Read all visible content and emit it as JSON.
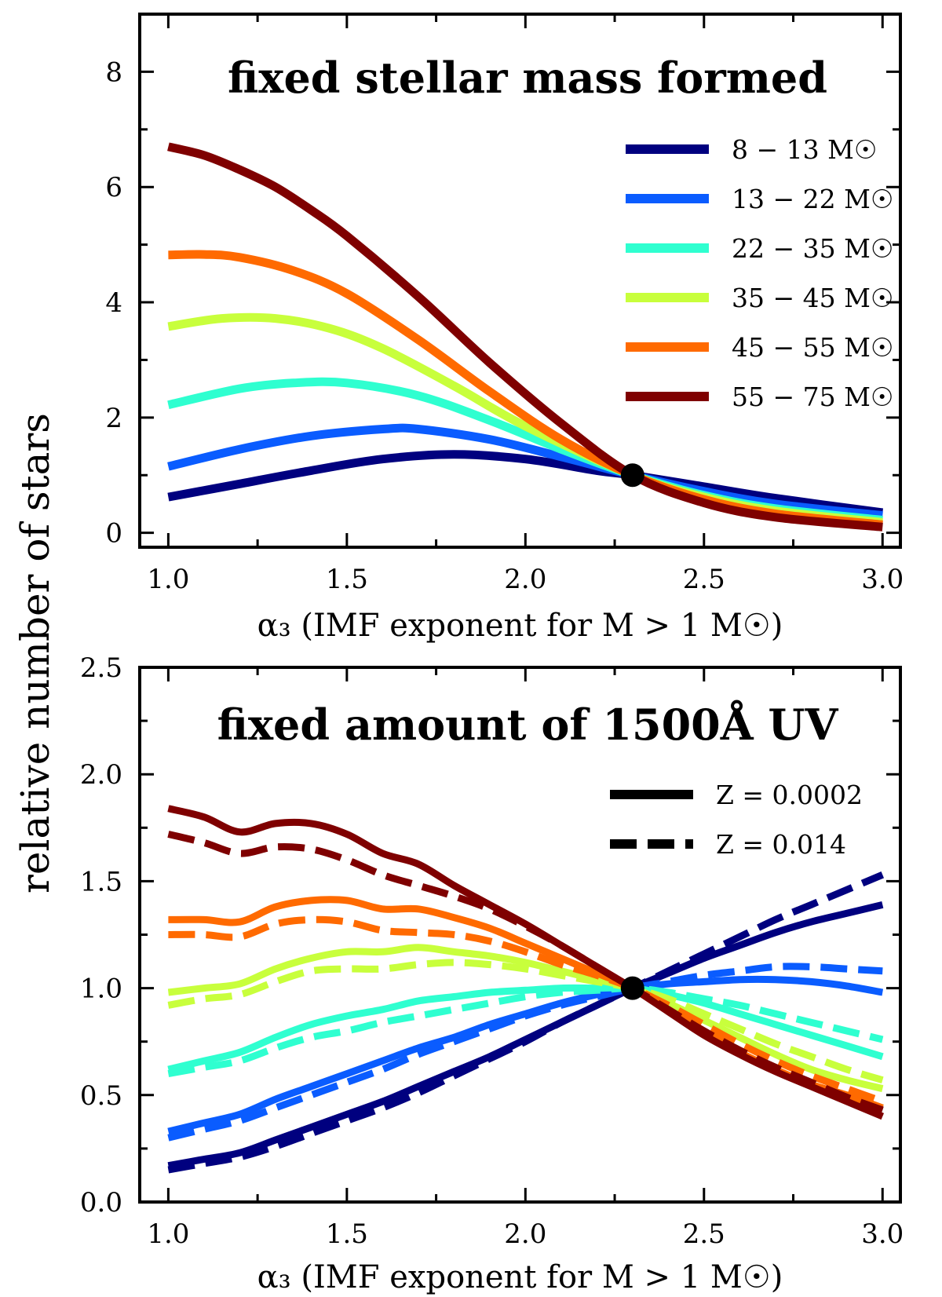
{
  "figure": {
    "ylabel": "relative number of stars",
    "pivot": {
      "x": 2.3,
      "y": 1.0
    }
  },
  "chart_data": [
    {
      "type": "line",
      "title": "fixed stellar mass formed",
      "xlabel": "α₃ (IMF exponent for M > 1 M☉)",
      "ylabel": "relative number of stars",
      "xlim": [
        0.92,
        3.05
      ],
      "ylim": [
        -0.25,
        9.0
      ],
      "xticks": [
        "1.0",
        "1.5",
        "2.0",
        "2.5",
        "3.0"
      ],
      "xtick_values": [
        1.0,
        1.5,
        2.0,
        2.5,
        3.0
      ],
      "yticks": [
        "0",
        "2",
        "4",
        "6",
        "8"
      ],
      "ytick_values": [
        0,
        2,
        4,
        6,
        8
      ],
      "grid": false,
      "legend": "top-right",
      "series": [
        {
          "name": "8 − 13 M☉",
          "color": "#00007f",
          "style": "solid",
          "x": [
            1.0,
            1.2,
            1.4,
            1.6,
            1.8,
            2.0,
            2.2,
            2.3,
            2.5,
            2.7,
            3.0
          ],
          "y": [
            0.62,
            0.85,
            1.08,
            1.28,
            1.36,
            1.28,
            1.08,
            1.0,
            0.8,
            0.6,
            0.35
          ]
        },
        {
          "name": "13 − 22 M☉",
          "color": "#0a5cff",
          "style": "solid",
          "x": [
            1.0,
            1.2,
            1.4,
            1.6,
            1.7,
            1.9,
            2.1,
            2.3,
            2.5,
            2.7,
            3.0
          ],
          "y": [
            1.15,
            1.45,
            1.68,
            1.8,
            1.8,
            1.62,
            1.32,
            1.0,
            0.72,
            0.5,
            0.3
          ]
        },
        {
          "name": "22 − 35 M☉",
          "color": "#2fffd0",
          "style": "solid",
          "x": [
            1.0,
            1.2,
            1.35,
            1.5,
            1.7,
            1.9,
            2.1,
            2.3,
            2.5,
            2.7,
            3.0
          ],
          "y": [
            2.22,
            2.5,
            2.6,
            2.6,
            2.38,
            1.95,
            1.45,
            1.0,
            0.65,
            0.42,
            0.22
          ]
        },
        {
          "name": "35 − 45 M☉",
          "color": "#c8ff3c",
          "style": "solid",
          "x": [
            1.0,
            1.15,
            1.3,
            1.45,
            1.6,
            1.8,
            2.0,
            2.3,
            2.5,
            2.7,
            3.0
          ],
          "y": [
            3.58,
            3.72,
            3.72,
            3.55,
            3.2,
            2.55,
            1.85,
            1.0,
            0.62,
            0.38,
            0.18
          ]
        },
        {
          "name": "45 − 55 M☉",
          "color": "#ff6a00",
          "style": "solid",
          "x": [
            1.0,
            1.1,
            1.2,
            1.35,
            1.5,
            1.7,
            1.9,
            2.1,
            2.3,
            2.5,
            2.7,
            3.0
          ],
          "y": [
            4.82,
            4.83,
            4.78,
            4.55,
            4.15,
            3.35,
            2.45,
            1.62,
            1.0,
            0.58,
            0.33,
            0.14
          ]
        },
        {
          "name": "55 − 75 M☉",
          "color": "#7f0000",
          "style": "solid",
          "x": [
            1.0,
            1.1,
            1.2,
            1.3,
            1.4,
            1.5,
            1.7,
            1.9,
            2.1,
            2.3,
            2.5,
            2.7,
            3.0
          ],
          "y": [
            6.7,
            6.55,
            6.3,
            6.0,
            5.6,
            5.15,
            4.1,
            2.95,
            1.9,
            1.0,
            0.52,
            0.27,
            0.1
          ]
        }
      ]
    },
    {
      "type": "line",
      "title": "fixed amount of 1500Å UV",
      "xlabel": "α₃ (IMF exponent for M > 1 M☉)",
      "ylabel": "relative number of stars",
      "xlim": [
        0.92,
        3.05
      ],
      "ylim": [
        0.0,
        2.5
      ],
      "xticks": [
        "1.0",
        "1.5",
        "2.0",
        "2.5",
        "3.0"
      ],
      "xtick_values": [
        1.0,
        1.5,
        2.0,
        2.5,
        3.0
      ],
      "yticks": [
        "0.0",
        "0.5",
        "1.0",
        "1.5",
        "2.0",
        "2.5"
      ],
      "ytick_values": [
        0.0,
        0.5,
        1.0,
        1.5,
        2.0,
        2.5
      ],
      "grid": false,
      "legend": "top-right",
      "legend_entries": [
        {
          "name": "Z = 0.0002",
          "style": "solid",
          "color": "#000000"
        },
        {
          "name": "Z = 0.014",
          "style": "dashed",
          "color": "#000000"
        }
      ],
      "series": [
        {
          "name": "8 − 13 M☉, Z = 0.0002",
          "color": "#00007f",
          "style": "solid",
          "x": [
            1.0,
            1.1,
            1.2,
            1.3,
            1.4,
            1.5,
            1.6,
            1.7,
            1.8,
            1.9,
            2.0,
            2.1,
            2.2,
            2.3,
            2.4,
            2.5,
            2.6,
            2.7,
            2.8,
            2.9,
            3.0
          ],
          "y": [
            0.17,
            0.2,
            0.23,
            0.29,
            0.35,
            0.41,
            0.47,
            0.54,
            0.61,
            0.68,
            0.76,
            0.84,
            0.92,
            1.0,
            1.07,
            1.14,
            1.2,
            1.26,
            1.31,
            1.35,
            1.39
          ]
        },
        {
          "name": "8 − 13 M☉, Z = 0.014",
          "color": "#00007f",
          "style": "dashed",
          "x": [
            1.0,
            1.1,
            1.2,
            1.3,
            1.4,
            1.5,
            1.6,
            1.7,
            1.8,
            1.9,
            2.0,
            2.1,
            2.2,
            2.3,
            2.4,
            2.5,
            2.6,
            2.7,
            2.8,
            2.9,
            3.0
          ],
          "y": [
            0.15,
            0.18,
            0.21,
            0.26,
            0.32,
            0.38,
            0.44,
            0.51,
            0.59,
            0.67,
            0.75,
            0.84,
            0.92,
            1.0,
            1.08,
            1.16,
            1.24,
            1.32,
            1.39,
            1.46,
            1.53
          ]
        },
        {
          "name": "13 − 22 M☉, Z = 0.0002",
          "color": "#0a5cff",
          "style": "solid",
          "x": [
            1.0,
            1.1,
            1.2,
            1.3,
            1.4,
            1.5,
            1.6,
            1.7,
            1.8,
            1.9,
            2.0,
            2.1,
            2.2,
            2.3,
            2.4,
            2.5,
            2.6,
            2.7,
            2.8,
            2.9,
            3.0
          ],
          "y": [
            0.33,
            0.37,
            0.41,
            0.48,
            0.54,
            0.6,
            0.66,
            0.72,
            0.77,
            0.83,
            0.88,
            0.93,
            0.97,
            1.0,
            1.02,
            1.03,
            1.04,
            1.04,
            1.03,
            1.01,
            0.98
          ]
        },
        {
          "name": "13 − 22 M☉, Z = 0.014",
          "color": "#0a5cff",
          "style": "dashed",
          "x": [
            1.0,
            1.1,
            1.2,
            1.3,
            1.4,
            1.5,
            1.6,
            1.7,
            1.8,
            1.9,
            2.0,
            2.1,
            2.2,
            2.3,
            2.4,
            2.5,
            2.6,
            2.7,
            2.8,
            2.9,
            3.0
          ],
          "y": [
            0.3,
            0.34,
            0.38,
            0.44,
            0.5,
            0.56,
            0.62,
            0.69,
            0.75,
            0.81,
            0.87,
            0.92,
            0.96,
            1.0,
            1.03,
            1.06,
            1.08,
            1.1,
            1.1,
            1.09,
            1.08
          ]
        },
        {
          "name": "22 − 35 M☉, Z = 0.0002",
          "color": "#2fffd0",
          "style": "solid",
          "x": [
            1.0,
            1.1,
            1.2,
            1.3,
            1.4,
            1.5,
            1.6,
            1.7,
            1.8,
            1.9,
            2.0,
            2.1,
            2.2,
            2.3,
            2.4,
            2.5,
            2.6,
            2.7,
            2.8,
            2.9,
            3.0
          ],
          "y": [
            0.62,
            0.66,
            0.7,
            0.77,
            0.83,
            0.87,
            0.9,
            0.94,
            0.96,
            0.98,
            0.99,
            1.0,
            1.0,
            1.0,
            0.97,
            0.93,
            0.88,
            0.83,
            0.78,
            0.73,
            0.68
          ]
        },
        {
          "name": "22 − 35 M☉, Z = 0.014",
          "color": "#2fffd0",
          "style": "dashed",
          "x": [
            1.0,
            1.1,
            1.2,
            1.3,
            1.4,
            1.5,
            1.6,
            1.7,
            1.8,
            1.9,
            2.0,
            2.1,
            2.2,
            2.3,
            2.4,
            2.5,
            2.6,
            2.7,
            2.8,
            2.9,
            3.0
          ],
          "y": [
            0.6,
            0.63,
            0.66,
            0.72,
            0.77,
            0.8,
            0.84,
            0.87,
            0.9,
            0.93,
            0.96,
            0.98,
            0.99,
            1.0,
            0.98,
            0.95,
            0.92,
            0.88,
            0.84,
            0.8,
            0.76
          ]
        },
        {
          "name": "35 − 45 M☉, Z = 0.0002",
          "color": "#c8ff3c",
          "style": "solid",
          "x": [
            1.0,
            1.1,
            1.2,
            1.3,
            1.4,
            1.5,
            1.6,
            1.7,
            1.8,
            1.9,
            2.0,
            2.1,
            2.2,
            2.3,
            2.4,
            2.5,
            2.6,
            2.7,
            2.8,
            2.9,
            3.0
          ],
          "y": [
            0.98,
            1.0,
            1.02,
            1.09,
            1.14,
            1.17,
            1.17,
            1.19,
            1.17,
            1.15,
            1.12,
            1.08,
            1.04,
            1.0,
            0.93,
            0.85,
            0.77,
            0.69,
            0.62,
            0.57,
            0.53
          ]
        },
        {
          "name": "35 − 45 M☉, Z = 0.014",
          "color": "#c8ff3c",
          "style": "dashed",
          "x": [
            1.0,
            1.1,
            1.2,
            1.3,
            1.4,
            1.5,
            1.6,
            1.7,
            1.8,
            1.9,
            2.0,
            2.1,
            2.2,
            2.3,
            2.4,
            2.5,
            2.6,
            2.7,
            2.8,
            2.9,
            3.0
          ],
          "y": [
            0.92,
            0.95,
            0.97,
            1.03,
            1.08,
            1.09,
            1.09,
            1.11,
            1.12,
            1.11,
            1.09,
            1.06,
            1.03,
            1.0,
            0.95,
            0.88,
            0.81,
            0.74,
            0.68,
            0.62,
            0.57
          ]
        },
        {
          "name": "45 − 55 M☉, Z = 0.0002",
          "color": "#ff6a00",
          "style": "solid",
          "x": [
            1.0,
            1.1,
            1.2,
            1.3,
            1.4,
            1.5,
            1.6,
            1.7,
            1.8,
            1.9,
            2.0,
            2.1,
            2.2,
            2.3,
            2.4,
            2.5,
            2.6,
            2.7,
            2.8,
            2.9,
            3.0
          ],
          "y": [
            1.32,
            1.32,
            1.31,
            1.38,
            1.41,
            1.41,
            1.37,
            1.37,
            1.33,
            1.28,
            1.21,
            1.14,
            1.07,
            1.0,
            0.9,
            0.8,
            0.7,
            0.62,
            0.55,
            0.5,
            0.44
          ]
        },
        {
          "name": "45 − 55 M☉, Z = 0.014",
          "color": "#ff6a00",
          "style": "dashed",
          "x": [
            1.0,
            1.1,
            1.2,
            1.3,
            1.4,
            1.5,
            1.6,
            1.7,
            1.8,
            1.9,
            2.0,
            2.1,
            2.2,
            2.3,
            2.4,
            2.5,
            2.6,
            2.7,
            2.8,
            2.9,
            3.0
          ],
          "y": [
            1.25,
            1.25,
            1.24,
            1.3,
            1.32,
            1.31,
            1.27,
            1.26,
            1.25,
            1.22,
            1.17,
            1.11,
            1.06,
            1.0,
            0.92,
            0.83,
            0.74,
            0.66,
            0.59,
            0.53,
            0.47
          ]
        },
        {
          "name": "55 − 75 M☉, Z = 0.0002",
          "color": "#7f0000",
          "style": "solid",
          "x": [
            1.0,
            1.1,
            1.2,
            1.3,
            1.4,
            1.5,
            1.6,
            1.7,
            1.8,
            1.9,
            2.0,
            2.1,
            2.2,
            2.3,
            2.4,
            2.5,
            2.6,
            2.7,
            2.8,
            2.9,
            3.0
          ],
          "y": [
            1.84,
            1.8,
            1.73,
            1.77,
            1.77,
            1.72,
            1.63,
            1.58,
            1.48,
            1.39,
            1.3,
            1.2,
            1.1,
            1.0,
            0.89,
            0.78,
            0.69,
            0.61,
            0.54,
            0.47,
            0.4
          ]
        },
        {
          "name": "55 − 75 M☉, Z = 0.014",
          "color": "#7f0000",
          "style": "dashed",
          "x": [
            1.0,
            1.1,
            1.2,
            1.3,
            1.4,
            1.5,
            1.6,
            1.7,
            1.8,
            1.9,
            2.0,
            2.1,
            2.2,
            2.3,
            2.4,
            2.5,
            2.6,
            2.7,
            2.8,
            2.9,
            3.0
          ],
          "y": [
            1.72,
            1.68,
            1.63,
            1.66,
            1.65,
            1.6,
            1.53,
            1.48,
            1.43,
            1.37,
            1.29,
            1.2,
            1.1,
            1.0,
            0.9,
            0.8,
            0.71,
            0.63,
            0.56,
            0.49,
            0.43
          ]
        }
      ]
    }
  ]
}
